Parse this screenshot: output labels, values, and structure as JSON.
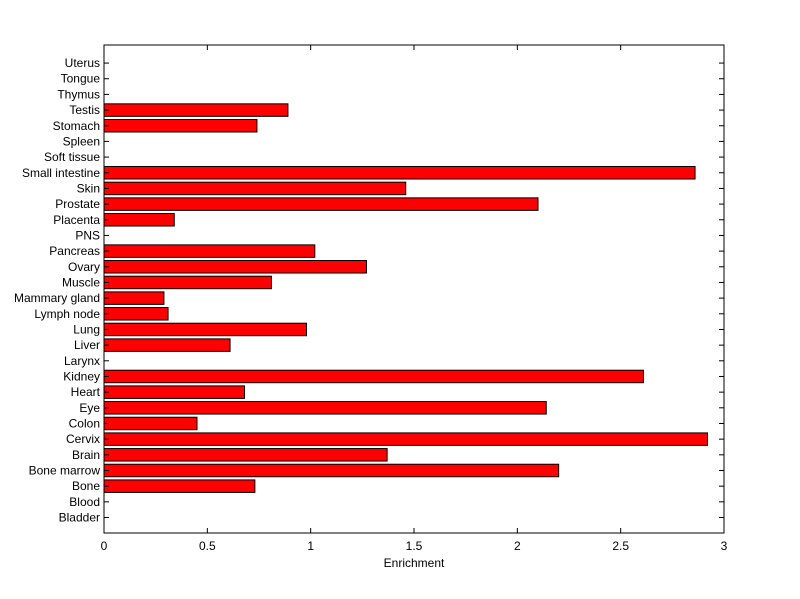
{
  "chart_data": {
    "type": "bar",
    "orientation": "horizontal",
    "title": "",
    "xlabel": "Enrichment",
    "ylabel": "",
    "xlim": [
      0,
      3
    ],
    "xticks": [
      "0",
      "0.5",
      "1",
      "1.5",
      "2",
      "2.5",
      "3"
    ],
    "grid": false,
    "legend": "none",
    "bar_color": "#ff0000",
    "categories": [
      "Bladder",
      "Blood",
      "Bone",
      "Bone marrow",
      "Brain",
      "Cervix",
      "Colon",
      "Eye",
      "Heart",
      "Kidney",
      "Larynx",
      "Liver",
      "Lung",
      "Lymph node",
      "Mammary gland",
      "Muscle",
      "Ovary",
      "Pancreas",
      "PNS",
      "Placenta",
      "Prostate",
      "Skin",
      "Small intestine",
      "Soft tissue",
      "Spleen",
      "Stomach",
      "Testis",
      "Thymus",
      "Tongue",
      "Uterus"
    ],
    "values": [
      0,
      0,
      0.73,
      2.2,
      1.37,
      2.92,
      0.45,
      2.14,
      0.68,
      2.61,
      0,
      0.61,
      0.98,
      0.31,
      0.29,
      0.81,
      1.27,
      1.02,
      0,
      0.34,
      2.1,
      1.46,
      2.86,
      0,
      0,
      0.74,
      0.89,
      0,
      0,
      0
    ]
  }
}
